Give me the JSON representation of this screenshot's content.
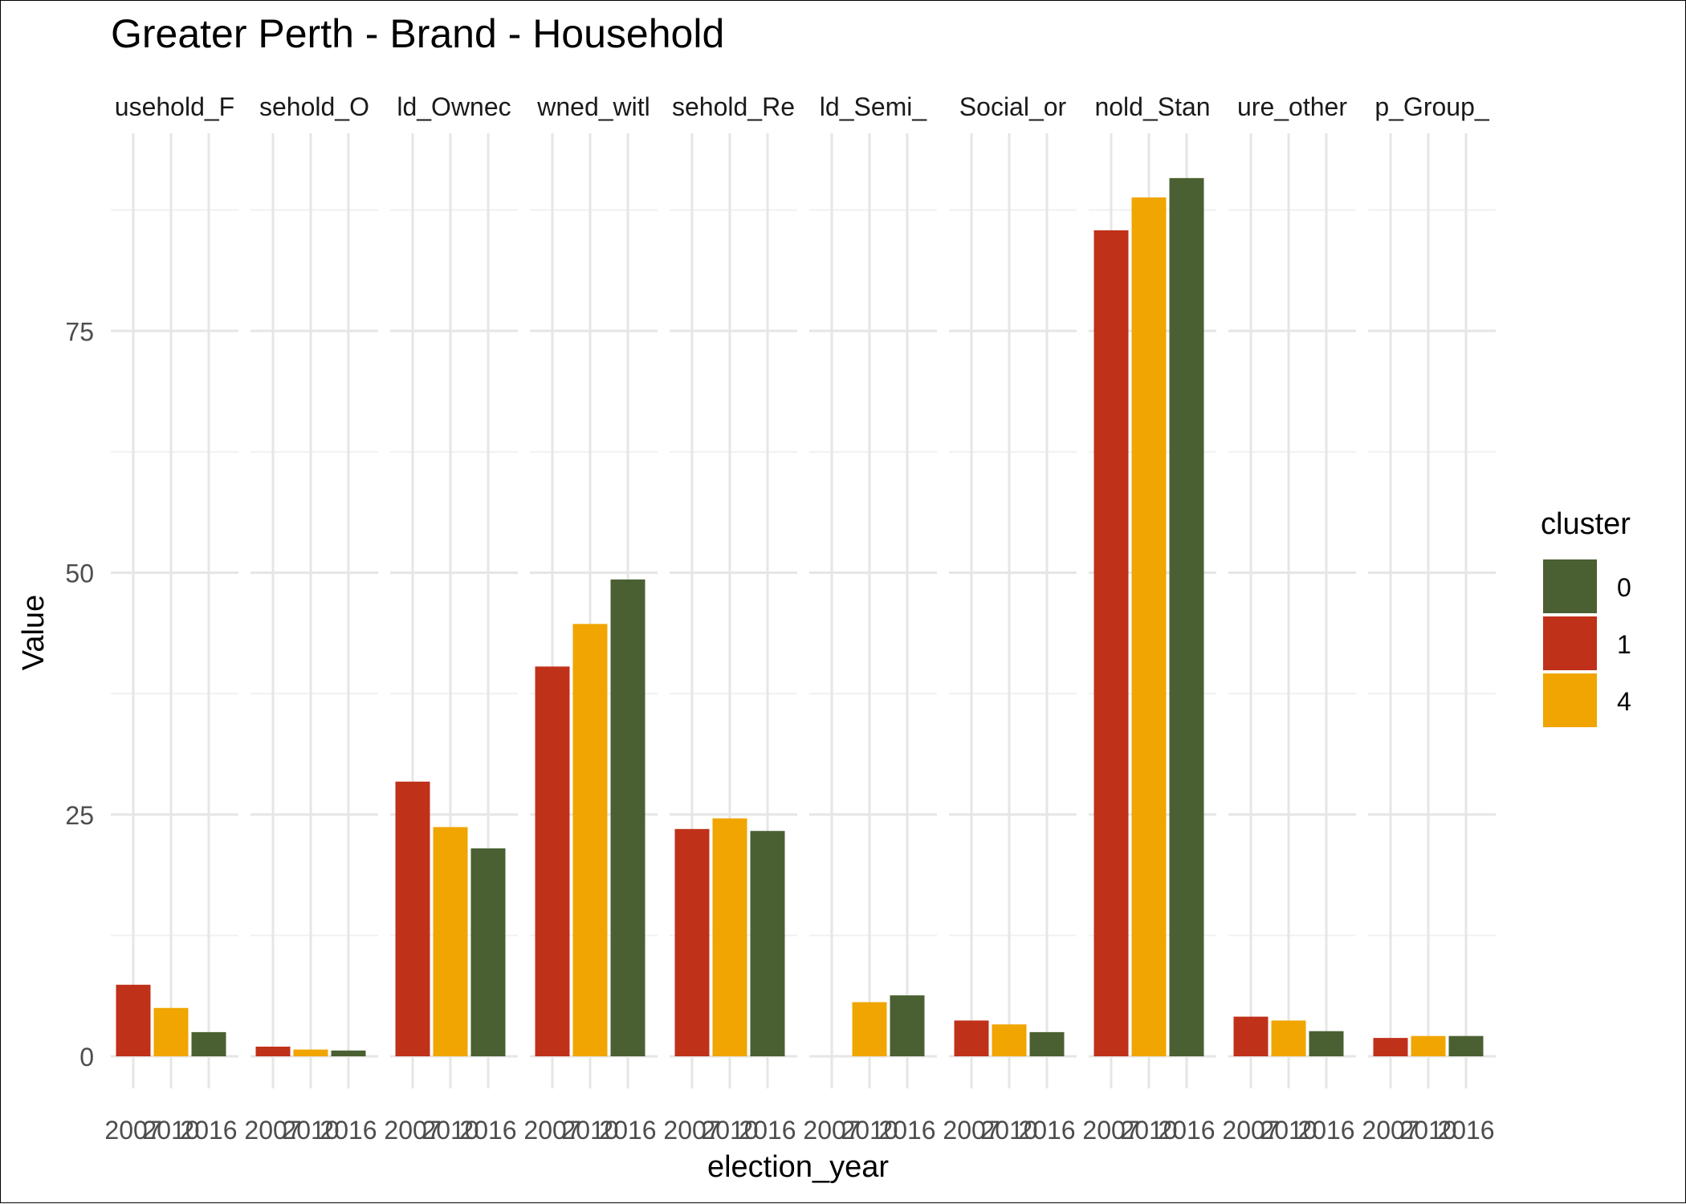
{
  "chart_data": {
    "type": "bar",
    "title": "Greater Perth - Brand - Household",
    "xlabel": "election_year",
    "ylabel": "Value",
    "ylim": [
      -2.3,
      96
    ],
    "yticks": [
      0,
      25,
      50,
      75
    ],
    "grid": true,
    "legend": {
      "title": "cluster",
      "placement": "right",
      "entries": [
        {
          "label": "0",
          "color": "#4a6032"
        },
        {
          "label": "1",
          "color": "#c0311a"
        },
        {
          "label": "4",
          "color": "#f0a500"
        }
      ]
    },
    "categories": [
      "2007",
      "2010",
      "2016"
    ],
    "bar_clusters": [
      "1",
      "4",
      "0"
    ],
    "panels": [
      {
        "label": "usehold_F",
        "values": [
          7.4,
          5.0,
          2.5
        ]
      },
      {
        "label": "sehold_O",
        "values": [
          1.0,
          0.7,
          0.6
        ]
      },
      {
        "label": "ld_Ownec",
        "values": [
          28.4,
          23.7,
          21.5
        ]
      },
      {
        "label": "wned_witl",
        "values": [
          40.3,
          44.7,
          49.3
        ]
      },
      {
        "label": "sehold_Re",
        "values": [
          23.5,
          24.6,
          23.3
        ]
      },
      {
        "label": "ld_Semi_",
        "values": [
          null,
          5.6,
          6.3
        ]
      },
      {
        "label": "Social_or",
        "values": [
          3.7,
          3.3,
          2.5
        ]
      },
      {
        "label": "nold_Stan",
        "values": [
          85.4,
          88.8,
          90.8
        ]
      },
      {
        "label": "ure_other",
        "values": [
          4.1,
          3.7,
          2.6
        ]
      },
      {
        "label": "p_Group_",
        "values": [
          1.9,
          2.1,
          2.1
        ]
      }
    ],
    "x_tick_labels": [
      "2007",
      "2010",
      "2016"
    ]
  }
}
